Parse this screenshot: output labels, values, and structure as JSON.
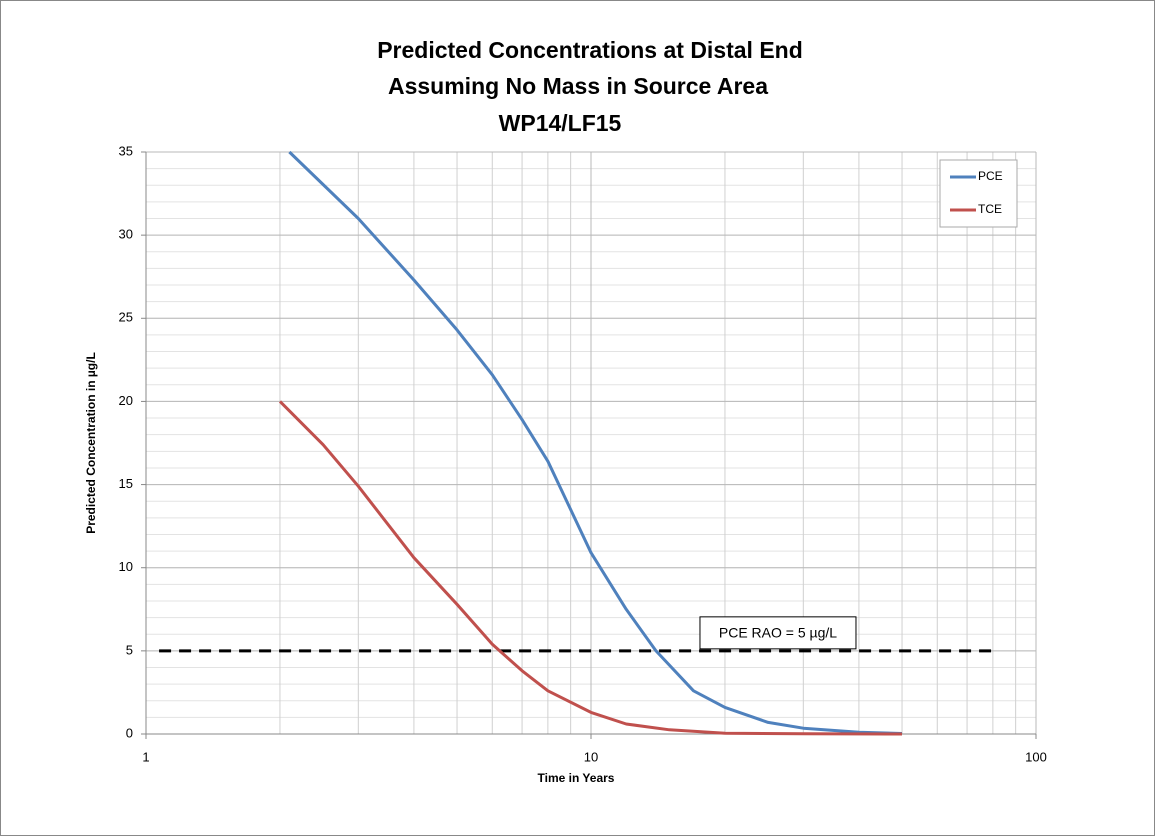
{
  "chart_data": {
    "type": "line",
    "title": [
      "Predicted Concentrations at Distal End",
      "Assuming No Mass in Source Area",
      "WP14/LF15"
    ],
    "x_label": "Time in Years",
    "y_label": "Predicted Concentration in µg/L",
    "x_log": true,
    "xlim": [
      1,
      100
    ],
    "xticks": [
      1,
      10,
      100
    ],
    "ylim": [
      0,
      35
    ],
    "yticks": [
      0,
      5,
      10,
      15,
      20,
      25,
      30,
      35
    ],
    "grid": true,
    "legend": "top-right",
    "series": [
      {
        "name": "PCE",
        "color": "#4f81bd",
        "x": [
          2.1,
          3,
          4,
          5,
          6,
          7,
          8,
          10,
          12,
          14,
          17,
          20,
          25,
          30,
          40,
          50
        ],
        "values": [
          35,
          31.0,
          27.3,
          24.3,
          21.6,
          18.9,
          16.4,
          10.9,
          7.5,
          5.0,
          2.6,
          1.6,
          0.7,
          0.35,
          0.1,
          0.03
        ]
      },
      {
        "name": "TCE",
        "color": "#c0504d",
        "x": [
          2,
          2.5,
          3,
          4,
          5,
          6,
          7,
          8,
          10,
          12,
          15,
          20,
          30,
          50
        ],
        "values": [
          20,
          17.4,
          14.9,
          10.6,
          7.8,
          5.4,
          3.8,
          2.6,
          1.3,
          0.6,
          0.25,
          0.05,
          0.01,
          0
        ]
      }
    ],
    "reference_line": {
      "y": 5,
      "x": [
        1.07,
        80
      ],
      "color": "#000000",
      "label": "PCE RAO = 5 µg/L"
    }
  }
}
